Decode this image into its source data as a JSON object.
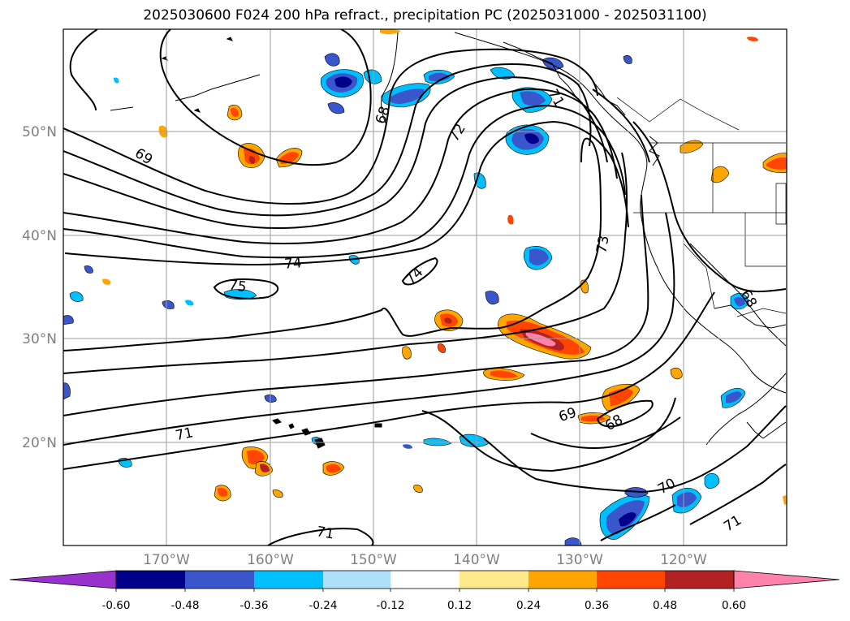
{
  "title": "2025030600 F024 200 hPa refract., precipitation PC (2025031000 - 2025031100)",
  "lat_labels": [
    "50°N",
    "40°N",
    "30°N",
    "20°N"
  ],
  "lon_labels": [
    "170°W",
    "160°W",
    "150°W",
    "140°W",
    "130°W",
    "120°W"
  ],
  "contour_labels": [
    "69",
    "68",
    "72",
    "71",
    "74",
    "75",
    "73",
    "74",
    "69",
    "68",
    "71",
    "70",
    "71",
    "68",
    "71"
  ],
  "colorbar": {
    "ticks": [
      "-0.60",
      "-0.48",
      "-0.36",
      "-0.24",
      "-0.12",
      "0.12",
      "0.24",
      "0.36",
      "0.48",
      "0.60"
    ],
    "colors": [
      "#9932cc",
      "#00008b",
      "#3a56cc",
      "#00bfff",
      "#afe0fa",
      "#ffffff",
      "#ffe88a",
      "#ffa500",
      "#ff4500",
      "#b22222",
      "#ff82ab"
    ]
  }
}
